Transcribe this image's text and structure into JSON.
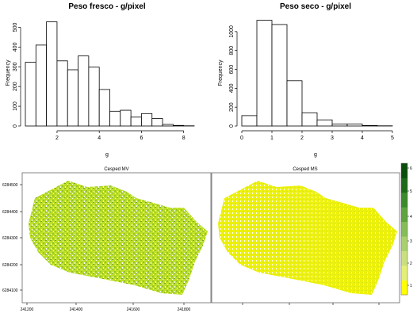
{
  "chart_data": [
    {
      "type": "bar",
      "title": "Peso fresco -  g/pixel",
      "xlabel": "g",
      "ylabel": "Frequency",
      "xlim": [
        0.5,
        8.5
      ],
      "ylim": [
        0,
        550
      ],
      "xticks": [
        "2",
        "4",
        "6",
        "8"
      ],
      "yticks": [
        "0",
        "100",
        "200",
        "300",
        "400",
        "500"
      ],
      "bins": [
        {
          "x0": 0.5,
          "x1": 1.0,
          "count": 323
        },
        {
          "x0": 1.0,
          "x1": 1.5,
          "count": 410
        },
        {
          "x0": 1.5,
          "x1": 2.0,
          "count": 528
        },
        {
          "x0": 2.0,
          "x1": 2.5,
          "count": 330
        },
        {
          "x0": 2.5,
          "x1": 3.0,
          "count": 285
        },
        {
          "x0": 3.0,
          "x1": 3.5,
          "count": 355
        },
        {
          "x0": 3.5,
          "x1": 4.0,
          "count": 298
        },
        {
          "x0": 4.0,
          "x1": 4.5,
          "count": 185
        },
        {
          "x0": 4.5,
          "x1": 5.0,
          "count": 75
        },
        {
          "x0": 5.0,
          "x1": 5.5,
          "count": 80
        },
        {
          "x0": 5.5,
          "x1": 6.0,
          "count": 45
        },
        {
          "x0": 6.0,
          "x1": 6.5,
          "count": 63
        },
        {
          "x0": 6.5,
          "x1": 7.0,
          "count": 38
        },
        {
          "x0": 7.0,
          "x1": 7.5,
          "count": 8
        },
        {
          "x0": 7.5,
          "x1": 8.0,
          "count": 3
        },
        {
          "x0": 8.0,
          "x1": 8.5,
          "count": 1
        }
      ]
    },
    {
      "type": "bar",
      "title": "Peso seco -  g/pixel",
      "xlabel": "g",
      "ylabel": "Frequency",
      "xlim": [
        0,
        5
      ],
      "ylim": [
        0,
        1150
      ],
      "xticks": [
        "0",
        "1",
        "2",
        "3",
        "4",
        "5"
      ],
      "yticks": [
        "0",
        "200",
        "400",
        "600",
        "800",
        "1000"
      ],
      "bins": [
        {
          "x0": 0.0,
          "x1": 0.5,
          "count": 110
        },
        {
          "x0": 0.5,
          "x1": 1.0,
          "count": 1120
        },
        {
          "x0": 1.0,
          "x1": 1.5,
          "count": 1075
        },
        {
          "x0": 1.5,
          "x1": 2.0,
          "count": 480
        },
        {
          "x0": 2.0,
          "x1": 2.5,
          "count": 140
        },
        {
          "x0": 2.5,
          "x1": 3.0,
          "count": 65
        },
        {
          "x0": 3.0,
          "x1": 3.5,
          "count": 20
        },
        {
          "x0": 3.5,
          "x1": 4.0,
          "count": 22
        },
        {
          "x0": 4.0,
          "x1": 4.5,
          "count": 5
        },
        {
          "x0": 4.5,
          "x1": 5.0,
          "count": 2
        }
      ]
    },
    {
      "type": "heatmap",
      "panels": [
        {
          "title": "Cesped MV",
          "color": "#a8d400"
        },
        {
          "title": "Cesped MS",
          "color": "#e8ee00"
        }
      ],
      "xticks": [
        "241200",
        "241400",
        "241600",
        "241800"
      ],
      "yticks": [
        "6284500",
        "6284400",
        "6284300",
        "6284200",
        "6284100"
      ],
      "colorbar": {
        "ticks": [
          "1",
          "2",
          "3",
          "4",
          "5",
          "6"
        ],
        "ramp": [
          "#ffff00",
          "#e4f075",
          "#c9e07e",
          "#a9d06c",
          "#85bd56",
          "#5ea43f",
          "#3c8a2b",
          "#1d6a19",
          "#0b4d0b"
        ]
      }
    }
  ]
}
